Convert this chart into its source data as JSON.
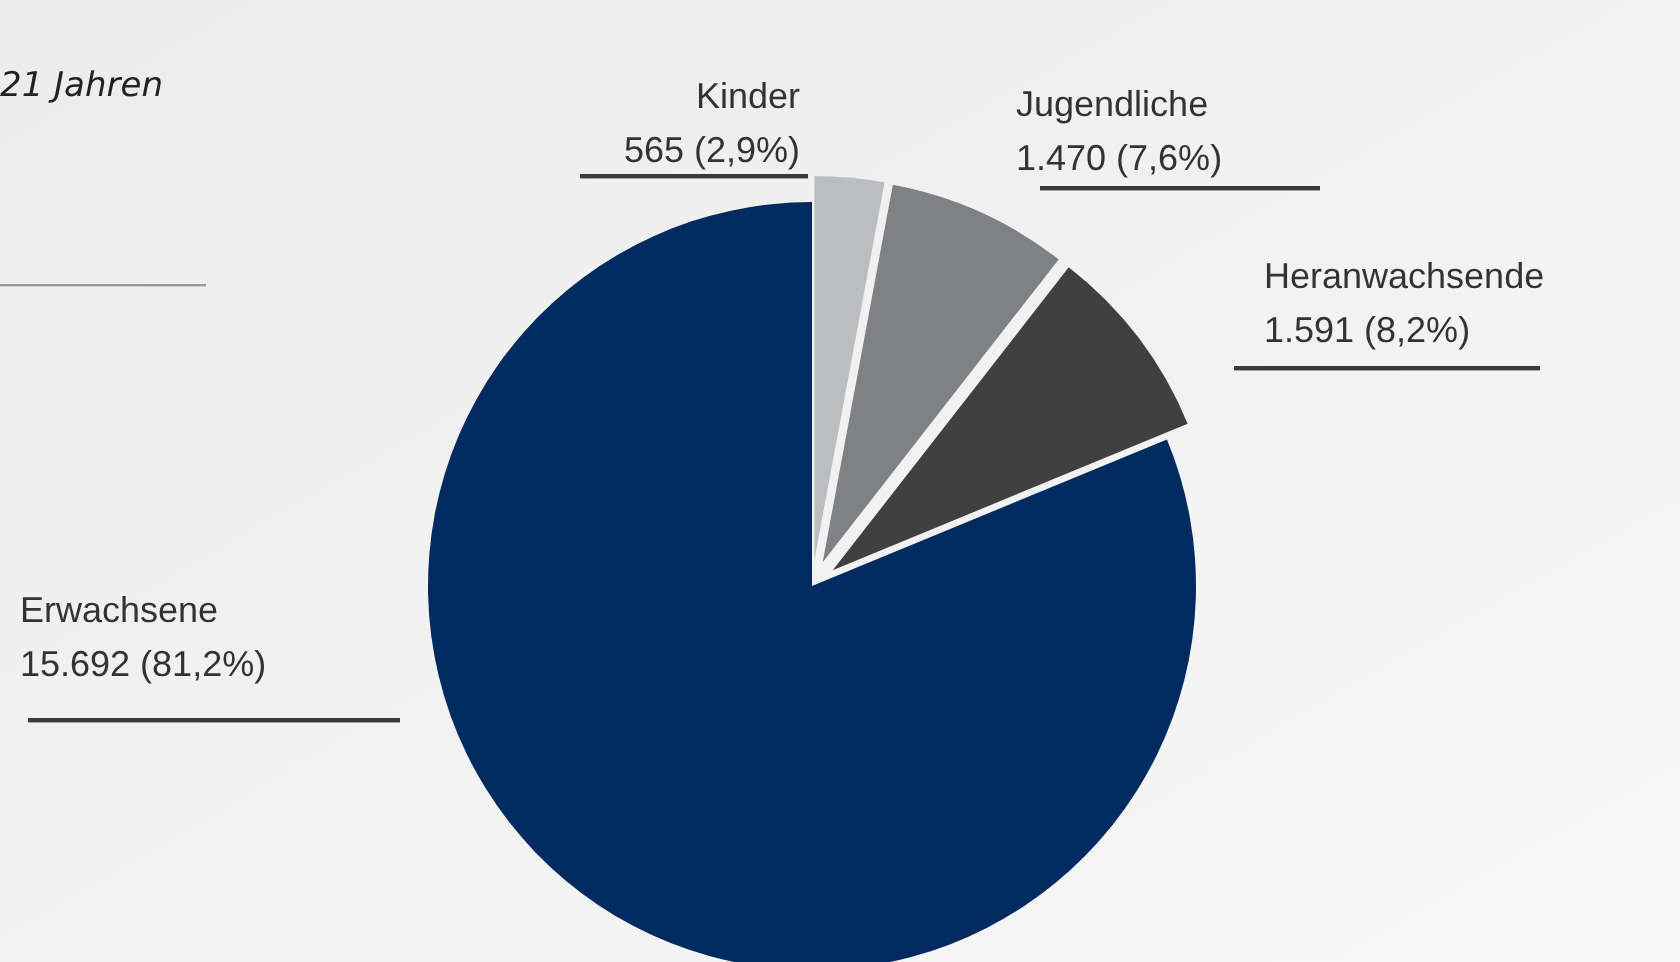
{
  "chart_data": {
    "type": "pie",
    "title": "21 Jahren",
    "categories": [
      "Kinder",
      "Jugendliche",
      "Heranwachsende",
      "Erwachsene"
    ],
    "values": [
      565,
      1470,
      1591,
      15692
    ],
    "colors": [
      "#bbbdc0",
      "#808184",
      "#404040",
      "#002b61"
    ],
    "value_labels": [
      "565 (2,9%)",
      "1.470 (7,6%)",
      "1.591 (8,2%)",
      "15.692 (81,2%)"
    ]
  }
}
